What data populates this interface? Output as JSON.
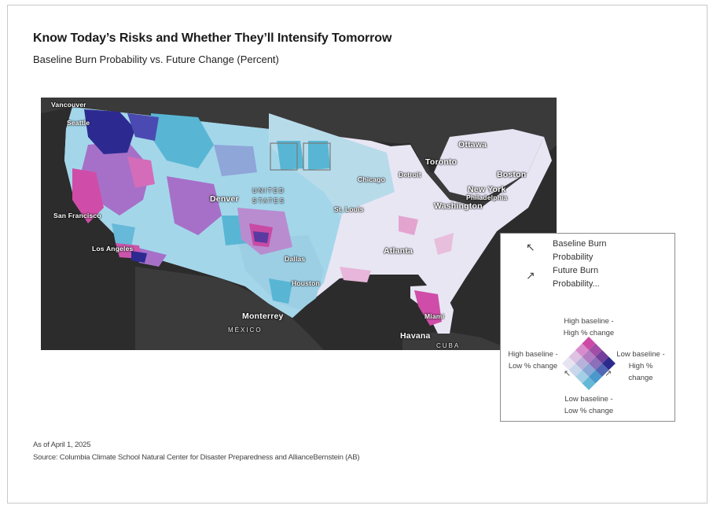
{
  "title": "Know Today’s Risks and Whether They’ll Intensify Tomorrow",
  "subtitle": "Baseline Burn Probability vs. Future Change (Percent)",
  "map": {
    "labels": {
      "vancouver": "Vancouver",
      "seattle": "Seattle",
      "ottawa": "Ottawa",
      "toronto": "Toronto",
      "detroit": "Detroit",
      "chicago": "Chicago",
      "boston": "Boston",
      "new_york": "New York",
      "philadelphia": "Philadelphia",
      "washington": "Washington",
      "denver": "Denver",
      "united_states_1": "UNITED",
      "united_states_2": "STATES",
      "st_louis": "St. Louis",
      "san_francisco": "San Francisco",
      "los_angeles": "Los Angeles",
      "atlanta": "Atlanta",
      "dallas": "Dallas",
      "houston": "Houston",
      "monterrey": "Monterrey",
      "mexico": "MÉXICO",
      "miami": "Miami",
      "havana": "Havana",
      "cuba": "CUBA"
    },
    "colors": {
      "background": "#2c2c2c",
      "low_low": "#e9e6f4",
      "low_high": "#a4d6ea",
      "mid_high": "#58b6d4",
      "high_low": "#cf4da8",
      "high_mid": "#a670c8",
      "high_high": "#2c2a91"
    }
  },
  "legend": {
    "baseline_label": "Baseline Burn Probability",
    "future_label": "Future Burn Probability...",
    "baseline_arrow_icon": "arrow-up-left",
    "future_arrow_icon": "arrow-up-right",
    "top_label": "High baseline - High % change",
    "left_label": "High baseline - Low % change",
    "right_label": "Low baseline - High % change",
    "bottom_label": "Low baseline - Low % change",
    "grid_colors": [
      [
        "#e6e4f1",
        "#c8d7ec",
        "#a4d0e6",
        "#63b8d6"
      ],
      [
        "#ddc2e2",
        "#b8b2da",
        "#8ca8d6",
        "#4a98cc"
      ],
      [
        "#d88ccc",
        "#b27cc2",
        "#8b6fba",
        "#4f67b4"
      ],
      [
        "#cc4aa6",
        "#a24ea6",
        "#723f9c",
        "#2d2a8e"
      ]
    ]
  },
  "footnotes": {
    "date": "As of April 1, 2025",
    "source": "Source: Columbia Climate School Natural Center for Disaster Preparedness and AllianceBernstein (AB)"
  }
}
